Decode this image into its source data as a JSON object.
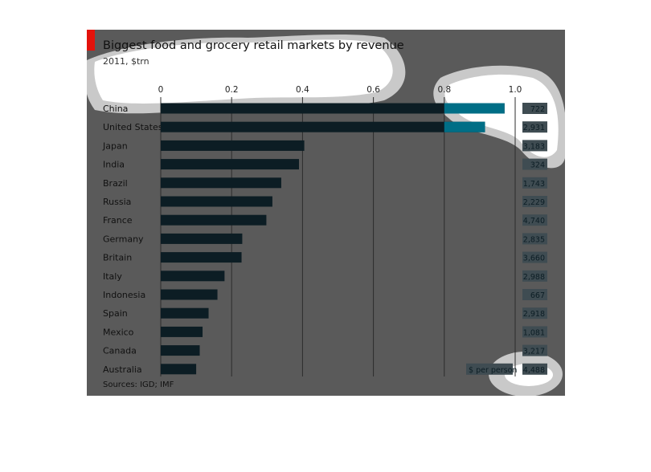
{
  "chart_data": {
    "type": "bar",
    "orientation": "horizontal",
    "title": "Biggest food and grocery retail markets by revenue",
    "subtitle": "2011, $trn",
    "source": "Sources: IGD; IMF",
    "categories": [
      "China",
      "United States",
      "Japan",
      "India",
      "Brazil",
      "Russia",
      "France",
      "Germany",
      "Britain",
      "Italy",
      "Indonesia",
      "Spain",
      "Mexico",
      "Canada",
      "Australia"
    ],
    "values": [
      0.97,
      0.915,
      0.405,
      0.39,
      0.34,
      0.315,
      0.298,
      0.23,
      0.228,
      0.18,
      0.16,
      0.135,
      0.118,
      0.11,
      0.1
    ],
    "xlim": [
      0,
      1.0
    ],
    "xticks": [
      "0",
      "0.2",
      "0.4",
      "0.6",
      "0.8",
      "1.0"
    ],
    "grid": true,
    "per_person_label": "$ per person",
    "per_person": [
      "722",
      "2,931",
      "3,183",
      "324",
      "1,743",
      "2,229",
      "4,740",
      "2,835",
      "3,660",
      "2,988",
      "667",
      "2,918",
      "1,081",
      "3,217",
      "4,488"
    ],
    "colors": {
      "background": "#5a5a5a",
      "bar": "#0c1d24",
      "bar_highlight": "#00738c",
      "value_box": "#3f4c52",
      "accent": "#e3120b"
    }
  }
}
